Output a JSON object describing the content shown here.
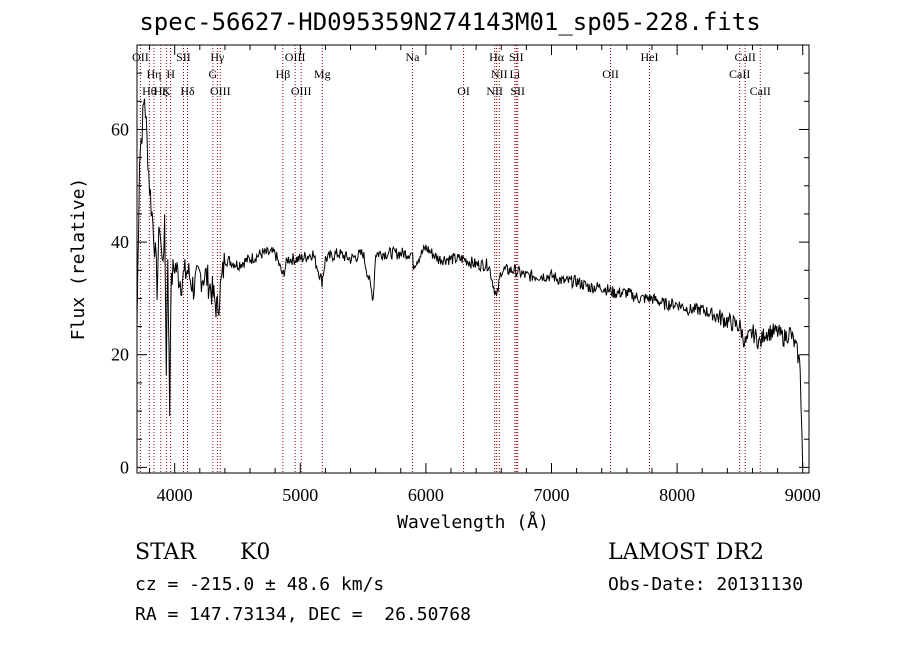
{
  "header": {
    "title": "spec-56627-HD095359N274143M01_sp05-228.fits"
  },
  "info": {
    "class": "STAR",
    "subclass": "K0",
    "survey": "LAMOST DR2",
    "cz": "cz = -215.0 ± 48.6 km/s",
    "obs_date": "Obs-Date: 20131130",
    "coords": "RA = 147.73134, DEC =  26.50768"
  },
  "colors": {
    "spectrum": "#000000",
    "marker_lines": "#8b0000",
    "background": "#ffffff"
  },
  "chart_data": {
    "type": "line",
    "title": "spec-56627-HD095359N274143M01_sp05-228.fits",
    "xlabel": "Wavelength (Å)",
    "ylabel": "Flux (relative)",
    "xlim": [
      3700,
      9050
    ],
    "ylim": [
      -1,
      75
    ],
    "xticks": [
      4000,
      5000,
      6000,
      7000,
      8000,
      9000
    ],
    "yticks": [
      0,
      20,
      40,
      60
    ],
    "grid": false,
    "series": [
      {
        "x": [
          3700,
          3720,
          3740,
          3760,
          3780,
          3800,
          3820,
          3840,
          3860,
          3880,
          3900,
          3920,
          3933,
          3945,
          3960,
          3968,
          3980,
          4000,
          4050,
          4100,
          4150,
          4200,
          4250,
          4300,
          4340,
          4400,
          4500,
          4600,
          4700,
          4800,
          4861,
          4900,
          5000,
          5100,
          5173,
          5200,
          5300,
          5400,
          5500,
          5580,
          5600,
          5700,
          5800,
          5890,
          5900,
          6000,
          6100,
          6200,
          6300,
          6400,
          6500,
          6563,
          6600,
          6700,
          6800,
          6900,
          7000,
          7100,
          7200,
          7300,
          7400,
          7500,
          7600,
          7700,
          7800,
          7900,
          8000,
          8100,
          8200,
          8300,
          8400,
          8500,
          8542,
          8600,
          8662,
          8700,
          8800,
          8850,
          8900,
          8950,
          8980,
          9000
        ],
        "y": [
          25,
          55,
          60,
          66,
          58,
          50,
          45,
          40,
          32,
          44,
          36,
          42,
          18,
          38,
          10,
          30,
          34,
          36,
          33,
          35,
          32,
          34,
          34,
          31,
          28,
          37,
          36,
          37,
          38,
          38,
          34,
          37,
          37,
          38,
          33,
          37,
          38,
          37,
          38,
          30,
          38,
          38,
          38,
          38,
          36,
          39,
          37,
          37,
          37,
          36,
          36,
          30,
          35,
          35,
          34,
          34,
          34,
          33,
          33,
          32,
          32,
          31,
          31,
          30,
          30,
          29,
          29,
          28,
          28,
          27,
          26,
          25,
          22,
          24,
          22,
          24,
          24,
          23,
          24,
          21,
          18,
          0
        ]
      }
    ],
    "spectral_lines": [
      {
        "label": "OII",
        "wavelength": 3727,
        "row": 0
      },
      {
        "label": "Hη",
        "wavelength": 3835,
        "row": 1
      },
      {
        "label": "H",
        "wavelength": 3968,
        "row": 1
      },
      {
        "label": "SII",
        "wavelength": 4070,
        "row": 0
      },
      {
        "label": "Hγ",
        "wavelength": 4340,
        "row": 0
      },
      {
        "label": "G",
        "wavelength": 4304,
        "row": 1
      },
      {
        "label": "OIII",
        "wavelength": 4959,
        "row": 0
      },
      {
        "label": "Hβ",
        "wavelength": 4861,
        "row": 1
      },
      {
        "label": "Mg",
        "wavelength": 5175,
        "row": 1
      },
      {
        "label": "Na",
        "wavelength": 5893,
        "row": 0
      },
      {
        "label": "Hα",
        "wavelength": 6563,
        "row": 0
      },
      {
        "label": "SII",
        "wavelength": 6720,
        "row": 0
      },
      {
        "label": "NII",
        "wavelength": 6584,
        "row": 1
      },
      {
        "label": "Li",
        "wavelength": 6708,
        "row": 1
      },
      {
        "label": "OII",
        "wavelength": 7470,
        "row": 1
      },
      {
        "label": "HeI",
        "wavelength": 7780,
        "row": 0
      },
      {
        "label": "CaII",
        "wavelength": 8542,
        "row": 0
      },
      {
        "label": "CaII",
        "wavelength": 8498,
        "row": 1
      },
      {
        "label": "Hθ",
        "wavelength": 3798,
        "row": 2
      },
      {
        "label": "Hζ",
        "wavelength": 3889,
        "row": 2
      },
      {
        "label": "K",
        "wavelength": 3934,
        "row": 2
      },
      {
        "label": "Hδ",
        "wavelength": 4102,
        "row": 2
      },
      {
        "label": "OIII",
        "wavelength": 4363,
        "row": 2
      },
      {
        "label": "OIII",
        "wavelength": 5007,
        "row": 2
      },
      {
        "label": "OI",
        "wavelength": 6300,
        "row": 2
      },
      {
        "label": "NII",
        "wavelength": 6548,
        "row": 2
      },
      {
        "label": "SII",
        "wavelength": 6731,
        "row": 2
      },
      {
        "label": "CaII",
        "wavelength": 8662,
        "row": 2
      }
    ]
  }
}
